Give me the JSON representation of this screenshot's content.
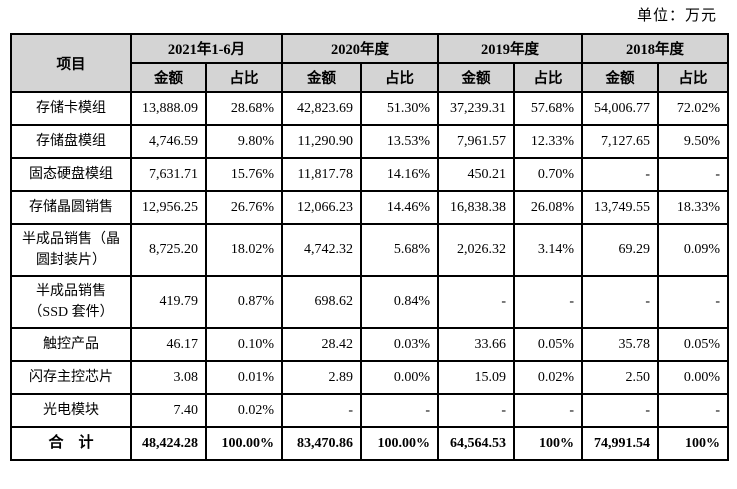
{
  "unit_label": "单位：万元",
  "table": {
    "corner_header": "项目",
    "amount_label": "金额",
    "ratio_label": "占比",
    "periods": [
      "2021年1-6月",
      "2020年度",
      "2019年度",
      "2018年度"
    ],
    "rows": [
      {
        "label": "存储卡模组",
        "values": [
          "13,888.09",
          "28.68%",
          "42,823.69",
          "51.30%",
          "37,239.31",
          "57.68%",
          "54,006.77",
          "72.02%"
        ]
      },
      {
        "label": "存储盘模组",
        "values": [
          "4,746.59",
          "9.80%",
          "11,290.90",
          "13.53%",
          "7,961.57",
          "12.33%",
          "7,127.65",
          "9.50%"
        ]
      },
      {
        "label": "固态硬盘模组",
        "values": [
          "7,631.71",
          "15.76%",
          "11,817.78",
          "14.16%",
          "450.21",
          "0.70%",
          "-",
          "-"
        ]
      },
      {
        "label": "存储晶圆销售",
        "values": [
          "12,956.25",
          "26.76%",
          "12,066.23",
          "14.46%",
          "16,838.38",
          "26.08%",
          "13,749.55",
          "18.33%"
        ]
      },
      {
        "label": "半成品销售（晶\n圆封装片）",
        "values": [
          "8,725.20",
          "18.02%",
          "4,742.32",
          "5.68%",
          "2,026.32",
          "3.14%",
          "69.29",
          "0.09%"
        ]
      },
      {
        "label": "半成品销售\n（SSD 套件）",
        "values": [
          "419.79",
          "0.87%",
          "698.62",
          "0.84%",
          "-",
          "-",
          "-",
          "-"
        ]
      },
      {
        "label": "触控产品",
        "values": [
          "46.17",
          "0.10%",
          "28.42",
          "0.03%",
          "33.66",
          "0.05%",
          "35.78",
          "0.05%"
        ]
      },
      {
        "label": "闪存主控芯片",
        "values": [
          "3.08",
          "0.01%",
          "2.89",
          "0.00%",
          "15.09",
          "0.02%",
          "2.50",
          "0.00%"
        ]
      },
      {
        "label": "光电模块",
        "values": [
          "7.40",
          "0.02%",
          "-",
          "-",
          "-",
          "-",
          "-",
          "-"
        ]
      }
    ],
    "total_row": {
      "label": "合　计",
      "values": [
        "48,424.28",
        "100.00%",
        "83,470.86",
        "100.00%",
        "64,564.53",
        "100%",
        "74,991.54",
        "100%"
      ]
    }
  }
}
